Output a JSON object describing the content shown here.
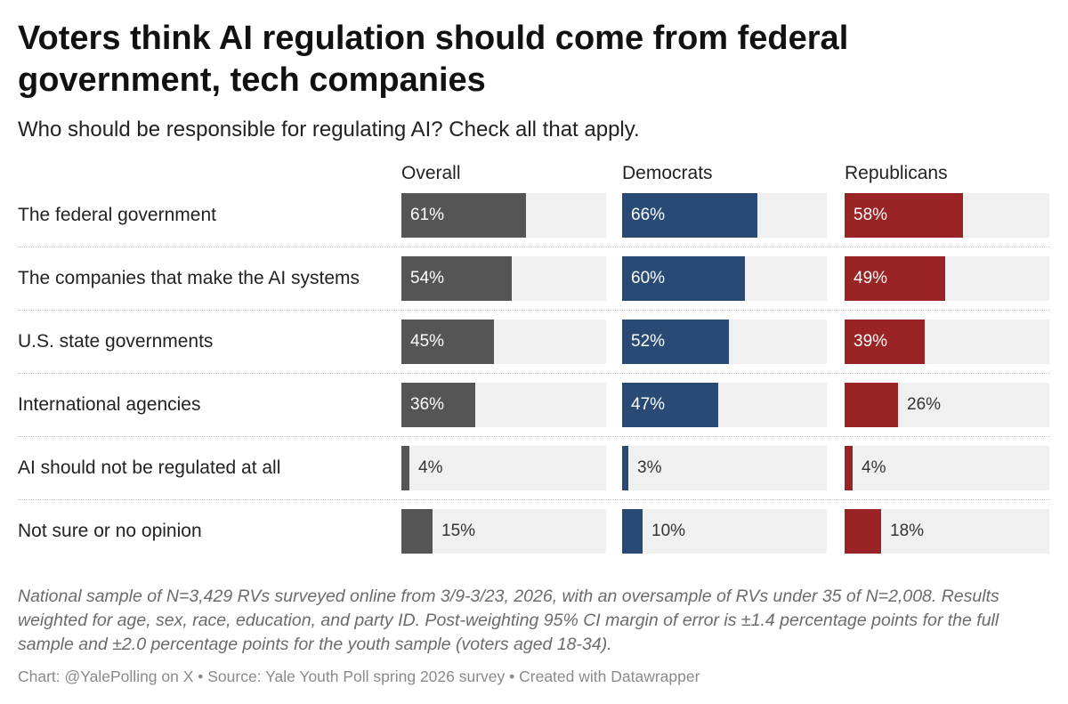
{
  "title": "Voters think AI regulation should come from federal government, tech companies",
  "subtitle": "Who should be responsible for regulating AI? Check all that apply.",
  "notes": "National sample of N=3,429 RVs surveyed online from 3/9-3/23, 2026, with an oversample of RVs under 35 of N=2,008. Results weighted for age, sex, race, education, and party ID. Post-weighting 95% CI margin of error is ±1.4 percentage points for the full sample and ±2.0 percentage points for the youth sample (voters aged 18-34).",
  "footer": "Chart: @YalePolling on X • Source: Yale Youth Poll spring 2026 survey • Created with Datawrapper",
  "chart_data": {
    "type": "bar",
    "orientation": "horizontal",
    "layout": "small-multiples",
    "unit": "%",
    "xlim": [
      0,
      100
    ],
    "grid": false,
    "legend": "none",
    "categories": [
      "The federal government",
      "The companies that make the AI systems",
      "U.S. state governments",
      "International agencies",
      "AI should not be regulated at all",
      "Not sure or no opinion"
    ],
    "series": [
      {
        "name": "Overall",
        "color": "#555555",
        "values": [
          61,
          54,
          45,
          36,
          4,
          15
        ]
      },
      {
        "name": "Democrats",
        "color": "#2a4a76",
        "values": [
          66,
          60,
          52,
          47,
          3,
          10
        ]
      },
      {
        "name": "Republicans",
        "color": "#9a2325",
        "values": [
          58,
          49,
          39,
          26,
          4,
          18
        ]
      }
    ]
  }
}
